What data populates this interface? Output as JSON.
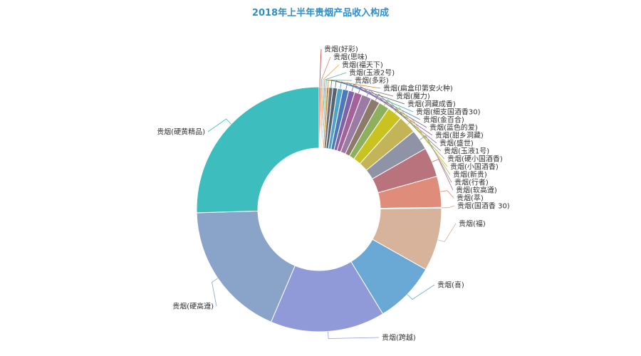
{
  "chart_data": {
    "type": "pie",
    "title": "2018年上半年贵烟产品收入构成",
    "donut": true,
    "colors": {
      "title": "#2e8fcf"
    },
    "slices": [
      {
        "label": "贵烟(好彩)",
        "value": 0.2,
        "color": "#c23531"
      },
      {
        "label": "贵烟(思味)",
        "value": 0.2,
        "color": "#d48265"
      },
      {
        "label": "贵烟(福天下)",
        "value": 0.2,
        "color": "#e7a13d"
      },
      {
        "label": "贵烟(玉液2号)",
        "value": 0.2,
        "color": "#61a0a8"
      },
      {
        "label": "贵烟(多彩)",
        "value": 0.2,
        "color": "#749f83"
      },
      {
        "label": "贵烟(扁盒印第安火种)",
        "value": 0.3,
        "color": "#ca8622"
      },
      {
        "label": "贵烟(魔力)",
        "value": 0.5,
        "color": "#6e7074"
      },
      {
        "label": "贵烟(洞藏成香)",
        "value": 0.6,
        "color": "#546570"
      },
      {
        "label": "贵烟(细支国酒香30)",
        "value": 0.7,
        "color": "#4fa3c9"
      },
      {
        "label": "贵烟(金百合)",
        "value": 0.8,
        "color": "#4a7ab8"
      },
      {
        "label": "贵烟(蓝色的爱)",
        "value": 0.8,
        "color": "#7d63a8"
      },
      {
        "label": "贵烟(甜乡洞藏)",
        "value": 1.0,
        "color": "#a5629a"
      },
      {
        "label": "贵烟(盛世)",
        "value": 1.3,
        "color": "#9b7ba3"
      },
      {
        "label": "贵烟(玉液1号)",
        "value": 1.2,
        "color": "#8c7a6b"
      },
      {
        "label": "贵烟(硬小国酒香)",
        "value": 1.4,
        "color": "#8db05e"
      },
      {
        "label": "贵烟(小国酒香)",
        "value": 2.0,
        "color": "#c9c321"
      },
      {
        "label": "贵烟(新贵)",
        "value": 2.4,
        "color": "#c3b557"
      },
      {
        "label": "贵烟(行者)",
        "value": 2.7,
        "color": "#8e93a5"
      },
      {
        "label": "贵烟(软高遵)",
        "value": 3.9,
        "color": "#b8737d"
      },
      {
        "label": "贵烟(萃)",
        "value": 4.1,
        "color": "#df8c7a"
      },
      {
        "label": "贵烟(国酒香 30)",
        "value": 0.1,
        "color": "#e79c8a"
      },
      {
        "label": "贵烟(福)",
        "value": 8.3,
        "color": "#d6b39a"
      },
      {
        "label": "贵烟(喜)",
        "value": 8.1,
        "color": "#6aa8d5"
      },
      {
        "label": "贵烟(跨越)",
        "value": 15.1,
        "color": "#919ad8"
      },
      {
        "label": "贵烟(硬高遵)",
        "value": 18.1,
        "color": "#8aa3c9"
      },
      {
        "label": "贵烟(硬黄精品)",
        "value": 25.4,
        "color": "#3dbdbd"
      }
    ]
  }
}
